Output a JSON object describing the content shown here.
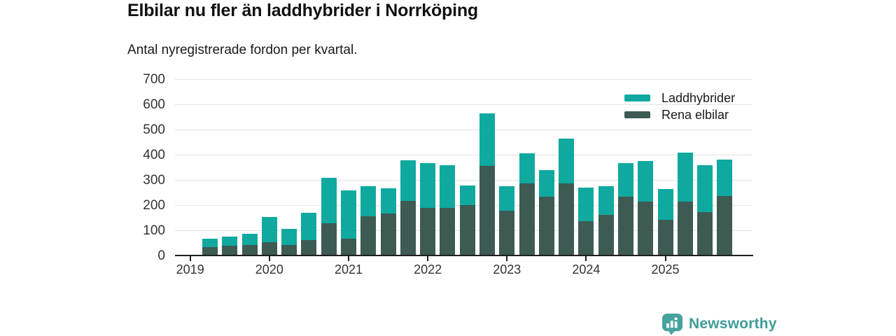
{
  "header": {
    "title": "Elbilar nu fler än laddhybrider i Norrköping",
    "subtitle": "Antal nyregistrerade fordon per kvartal."
  },
  "chart_data": {
    "type": "bar",
    "stacked": true,
    "title": "Elbilar nu fler än laddhybrider i Norrköping",
    "subtitle": "Antal nyregistrerade fordon per kvartal.",
    "categories": [
      "2019Q2",
      "2019Q3",
      "2019Q4",
      "2020Q1",
      "2020Q2",
      "2020Q3",
      "2020Q4",
      "2021Q1",
      "2021Q2",
      "2021Q3",
      "2021Q4",
      "2022Q1",
      "2022Q2",
      "2022Q3",
      "2022Q4",
      "2023Q1",
      "2023Q2",
      "2023Q3",
      "2023Q4",
      "2024Q1",
      "2024Q2",
      "2024Q3",
      "2024Q4",
      "2025Q1",
      "2025Q2",
      "2025Q3",
      "2025Q4"
    ],
    "series": [
      {
        "name": "Laddhybrider",
        "color": "#0fa9a0",
        "values": [
          34,
          35,
          42,
          100,
          65,
          109,
          179,
          189,
          120,
          99,
          159,
          178,
          168,
          77,
          210,
          99,
          121,
          106,
          180,
          135,
          115,
          133,
          159,
          124,
          195,
          184,
          145
        ]
      },
      {
        "name": "Rena elbilar",
        "color": "#3d5a53",
        "values": [
          34,
          40,
          43,
          52,
          41,
          61,
          129,
          68,
          155,
          167,
          218,
          190,
          190,
          200,
          355,
          177,
          285,
          234,
          285,
          135,
          161,
          234,
          215,
          141,
          214,
          173,
          236
        ]
      }
    ],
    "ylim": [
      0,
      700
    ],
    "yticks": [
      0,
      100,
      200,
      300,
      400,
      500,
      600,
      700
    ],
    "xticks": [
      "2019",
      "2020",
      "2021",
      "2022",
      "2023",
      "2024",
      "2025"
    ],
    "legend_position": "top-right",
    "grid": true
  },
  "footer": {
    "brand": "Newsworthy",
    "brand_color": "#3f9d98",
    "badge_color": "#47a39e",
    "badge_icon": "newsworthy-pin-barchart-icon"
  }
}
